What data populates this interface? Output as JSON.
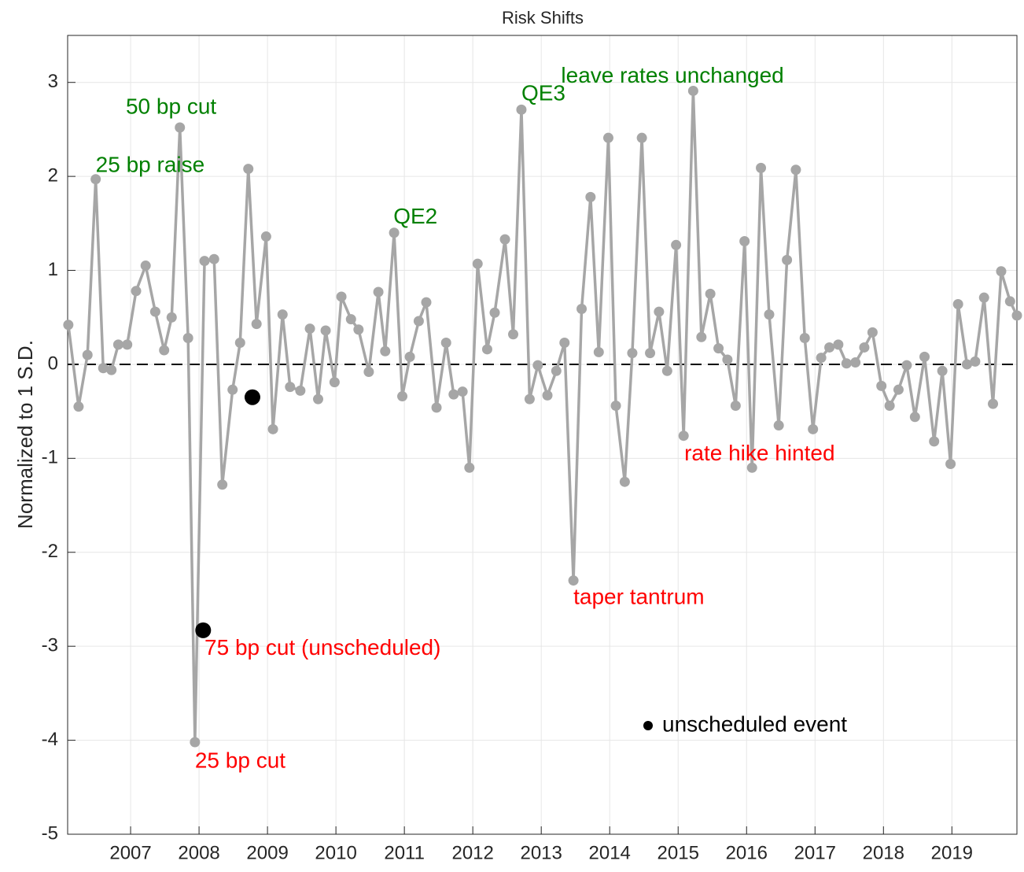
{
  "chart_data": {
    "type": "line",
    "title": "Risk Shifts",
    "y_label": "Normalized to 1 S.D.",
    "series": [
      {
        "color": "#a6a6a6",
        "x": [
          2006.09,
          2006.24,
          2006.37,
          2006.49,
          2006.6,
          2006.72,
          2006.82,
          2006.95,
          2007.08,
          2007.22,
          2007.36,
          2007.49,
          2007.6,
          2007.72,
          2007.84,
          2007.94,
          2008.08,
          2008.22,
          2008.34,
          2008.49,
          2008.6,
          2008.72,
          2008.84,
          2008.98,
          2009.08,
          2009.22,
          2009.33,
          2009.48,
          2009.62,
          2009.74,
          2009.85,
          2009.98,
          2010.08,
          2010.22,
          2010.33,
          2010.48,
          2010.62,
          2010.72,
          2010.85,
          2010.97,
          2011.08,
          2011.21,
          2011.32,
          2011.47,
          2011.61,
          2011.72,
          2011.85,
          2011.95,
          2012.07,
          2012.21,
          2012.32,
          2012.47,
          2012.59,
          2012.71,
          2012.83,
          2012.95,
          2013.09,
          2013.22,
          2013.34,
          2013.47,
          2013.59,
          2013.72,
          2013.84,
          2013.98,
          2014.09,
          2014.22,
          2014.33,
          2014.47,
          2014.59,
          2014.72,
          2014.84,
          2014.97,
          2015.08,
          2015.22,
          2015.34,
          2015.47,
          2015.59,
          2015.72,
          2015.84,
          2015.97,
          2016.08,
          2016.21,
          2016.33,
          2016.47,
          2016.59,
          2016.72,
          2016.85,
          2016.97,
          2017.09,
          2017.21,
          2017.34,
          2017.46,
          2017.59,
          2017.72,
          2017.84,
          2017.97,
          2018.09,
          2018.22,
          2018.34,
          2018.46,
          2018.6,
          2018.74,
          2018.86,
          2018.98,
          2019.09,
          2019.22,
          2019.34,
          2019.47,
          2019.6,
          2019.72,
          2019.85,
          2019.95
        ],
        "values": [
          0.42,
          -0.45,
          0.1,
          1.97,
          -0.04,
          -0.06,
          0.21,
          0.21,
          0.78,
          1.05,
          0.56,
          0.15,
          0.5,
          2.52,
          0.28,
          -4.02,
          1.1,
          1.12,
          -1.28,
          -0.27,
          0.23,
          2.08,
          0.43,
          1.36,
          -0.69,
          0.53,
          -0.24,
          -0.28,
          0.38,
          -0.37,
          0.36,
          -0.19,
          0.72,
          0.48,
          0.37,
          -0.08,
          0.77,
          0.14,
          1.4,
          -0.34,
          0.08,
          0.46,
          0.66,
          -0.46,
          0.23,
          -0.32,
          -0.29,
          -1.1,
          1.07,
          0.16,
          0.55,
          1.33,
          0.32,
          2.71,
          -0.37,
          -0.01,
          -0.33,
          -0.07,
          0.23,
          -2.3,
          0.59,
          1.78,
          0.13,
          2.41,
          -0.44,
          -1.25,
          0.12,
          2.41,
          0.12,
          0.56,
          -0.07,
          1.27,
          -0.76,
          2.91,
          0.29,
          0.75,
          0.17,
          0.05,
          -0.44,
          1.31,
          -1.1,
          2.09,
          0.53,
          -0.65,
          1.11,
          2.07,
          0.28,
          -0.69,
          0.07,
          0.18,
          0.21,
          0.01,
          0.02,
          0.18,
          0.34,
          -0.23,
          -0.44,
          -0.27,
          -0.01,
          -0.56,
          0.08,
          -0.82,
          -0.07,
          -1.06,
          0.64,
          0.0,
          0.03,
          0.71,
          -0.42,
          0.99,
          0.67,
          0.52
        ]
      },
      {
        "name": "unscheduled event",
        "color": "#000000",
        "x": [
          2008.06,
          2008.78
        ],
        "values": [
          -2.83,
          -0.35
        ]
      }
    ],
    "annotations": [
      {
        "text": "50 bp cut",
        "x": 2006.93,
        "y": 2.73,
        "color": "#008000"
      },
      {
        "text": "25 bp raise",
        "x": 2006.49,
        "y": 2.11,
        "color": "#008000"
      },
      {
        "text": "QE2",
        "x": 2010.84,
        "y": 1.56,
        "color": "#008000"
      },
      {
        "text": "QE3",
        "x": 2012.71,
        "y": 2.87,
        "color": "#008000"
      },
      {
        "text": "leave rates unchanged",
        "x": 2013.29,
        "y": 3.06,
        "color": "#008000"
      },
      {
        "text": "rate hike hinted",
        "x": 2015.09,
        "y": -0.96,
        "color": "#ff0000"
      },
      {
        "text": "taper tantrum",
        "x": 2013.47,
        "y": -2.49,
        "color": "#ff0000"
      },
      {
        "text": "75 bp cut (unscheduled)",
        "x": 2008.08,
        "y": -3.03,
        "color": "#ff0000"
      },
      {
        "text": "25 bp cut",
        "x": 2007.94,
        "y": -4.23,
        "color": "#ff0000"
      }
    ],
    "reference_line": 0,
    "xlim": [
      2006.08,
      2019.95
    ],
    "xticks": [
      2007,
      2008,
      2009,
      2010,
      2011,
      2012,
      2013,
      2014,
      2015,
      2016,
      2017,
      2018,
      2019
    ],
    "ylim": [
      -5,
      3.5
    ],
    "yticks": [
      -5,
      -4,
      -3,
      -2,
      -1,
      0,
      1,
      2,
      3
    ],
    "grid": true,
    "legend": "south"
  }
}
